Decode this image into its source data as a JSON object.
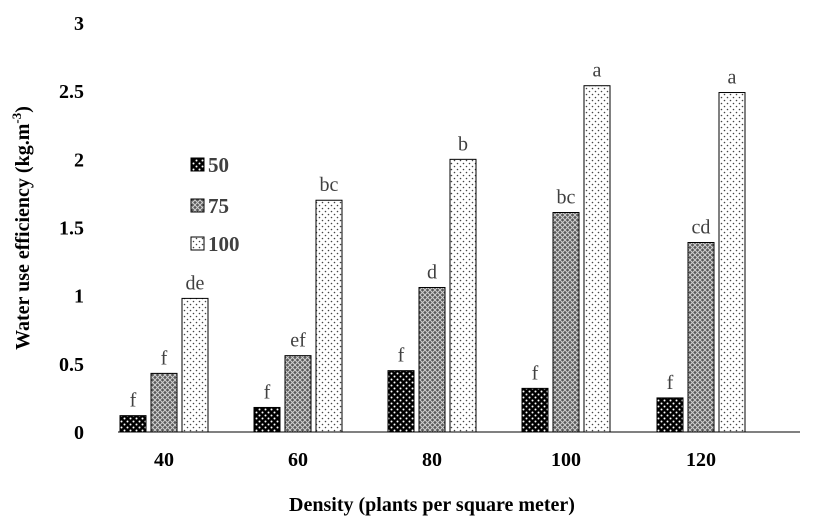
{
  "chart_data": {
    "type": "bar",
    "categories": [
      "40",
      "60",
      "80",
      "100",
      "120"
    ],
    "series": [
      {
        "name": "50",
        "pattern": "dots-dark",
        "values": [
          0.12,
          0.18,
          0.45,
          0.32,
          0.25
        ],
        "letters": [
          "f",
          "f",
          "f",
          "f",
          "f"
        ]
      },
      {
        "name": "75",
        "pattern": "crosshatch",
        "values": [
          0.43,
          0.56,
          1.06,
          1.61,
          1.39
        ],
        "letters": [
          "f",
          "ef",
          "d",
          "bc",
          "cd"
        ]
      },
      {
        "name": "100",
        "pattern": "dots-light",
        "values": [
          0.98,
          1.7,
          2.0,
          2.54,
          2.49
        ],
        "letters": [
          "de",
          "bc",
          "b",
          "a",
          "a"
        ]
      }
    ],
    "xlabel": "Density (plants per square meter)",
    "ylabel_main": "Water use efficiency (kg.m",
    "ylabel_sup": "-3",
    "ylabel_end": ")",
    "ylim": [
      0,
      3
    ],
    "yticks": [
      "0",
      "0.5",
      "1",
      "1.5",
      "2",
      "2.5",
      "3"
    ],
    "legend_position": "upper-left inside plot",
    "grid": false
  }
}
